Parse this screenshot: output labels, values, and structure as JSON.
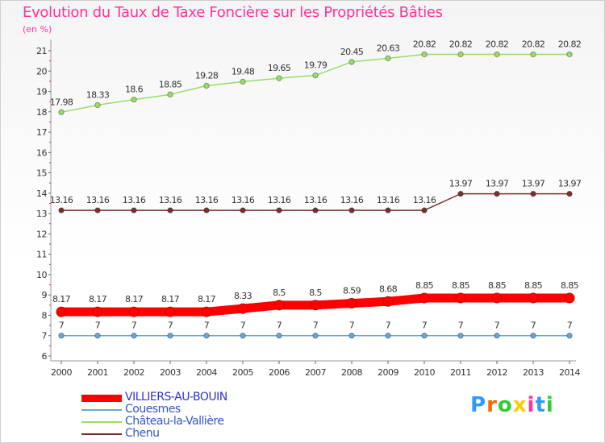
{
  "header": {
    "title": "Evolution du Taux de Taxe Foncière sur les Propriétés Bâties",
    "subtitle": "(en %)"
  },
  "logo": {
    "text": "Proxiti",
    "colors": [
      "#3399ff",
      "#ff6600",
      "#33cc33",
      "#ffcc00",
      "#ff3399",
      "#3399ff",
      "#33cc33"
    ]
  },
  "chart_data": {
    "type": "line",
    "title": "Evolution du Taux de Taxe Foncière sur les Propriétés Bâties",
    "subtitle": "(en %)",
    "xlabel": "",
    "ylabel": "",
    "x": [
      2000,
      2001,
      2002,
      2003,
      2004,
      2005,
      2006,
      2007,
      2008,
      2009,
      2010,
      2011,
      2012,
      2013,
      2014
    ],
    "ylim": [
      6,
      21
    ],
    "yticks": [
      6,
      7,
      8,
      9,
      10,
      11,
      12,
      13,
      14,
      15,
      16,
      17,
      18,
      19,
      20,
      21
    ],
    "grid": false,
    "legend": "bottom-left",
    "series": [
      {
        "name": "VILLIERS-AU-BOUIN",
        "color": "#ff0000",
        "emphasis": true,
        "values": [
          8.17,
          8.17,
          8.17,
          8.17,
          8.17,
          8.33,
          8.5,
          8.5,
          8.59,
          8.68,
          8.85,
          8.85,
          8.85,
          8.85,
          8.85
        ],
        "labels": [
          "8.17",
          "8.17",
          "8.17",
          "8.17",
          "8.17",
          "8.33",
          "8.5",
          "8.5",
          "8.59",
          "8.68",
          "8.85",
          "8.85",
          "8.85",
          "8.85",
          "8.85"
        ]
      },
      {
        "name": "Couesmes",
        "color": "#6aa6d6",
        "values": [
          7,
          7,
          7,
          7,
          7,
          7,
          7,
          7,
          7,
          7,
          7,
          7,
          7,
          7,
          7
        ],
        "labels": [
          "7",
          "7",
          "7",
          "7",
          "7",
          "7",
          "7",
          "7",
          "7",
          "7",
          "7",
          "7",
          "7",
          "7",
          "7"
        ]
      },
      {
        "name": "Château-la-Vallière",
        "color": "#99dd66",
        "values": [
          17.98,
          18.33,
          18.6,
          18.85,
          19.28,
          19.48,
          19.65,
          19.79,
          20.45,
          20.63,
          20.82,
          20.82,
          20.82,
          20.82,
          20.82
        ],
        "labels": [
          "17.98",
          "18.33",
          "18.6",
          "18.85",
          "19.28",
          "19.48",
          "19.65",
          "19.79",
          "20.45",
          "20.63",
          "20.82",
          "20.82",
          "20.82",
          "20.82",
          "20.82"
        ]
      },
      {
        "name": "Chenu",
        "color": "#7a3030",
        "values": [
          13.16,
          13.16,
          13.16,
          13.16,
          13.16,
          13.16,
          13.16,
          13.16,
          13.16,
          13.16,
          13.16,
          13.97,
          13.97,
          13.97,
          13.97
        ],
        "labels": [
          "13.16",
          "13.16",
          "13.16",
          "13.16",
          "13.16",
          "13.16",
          "13.16",
          "13.16",
          "13.16",
          "13.16",
          "13.16",
          "13.97",
          "13.97",
          "13.97",
          "13.97"
        ]
      }
    ]
  }
}
